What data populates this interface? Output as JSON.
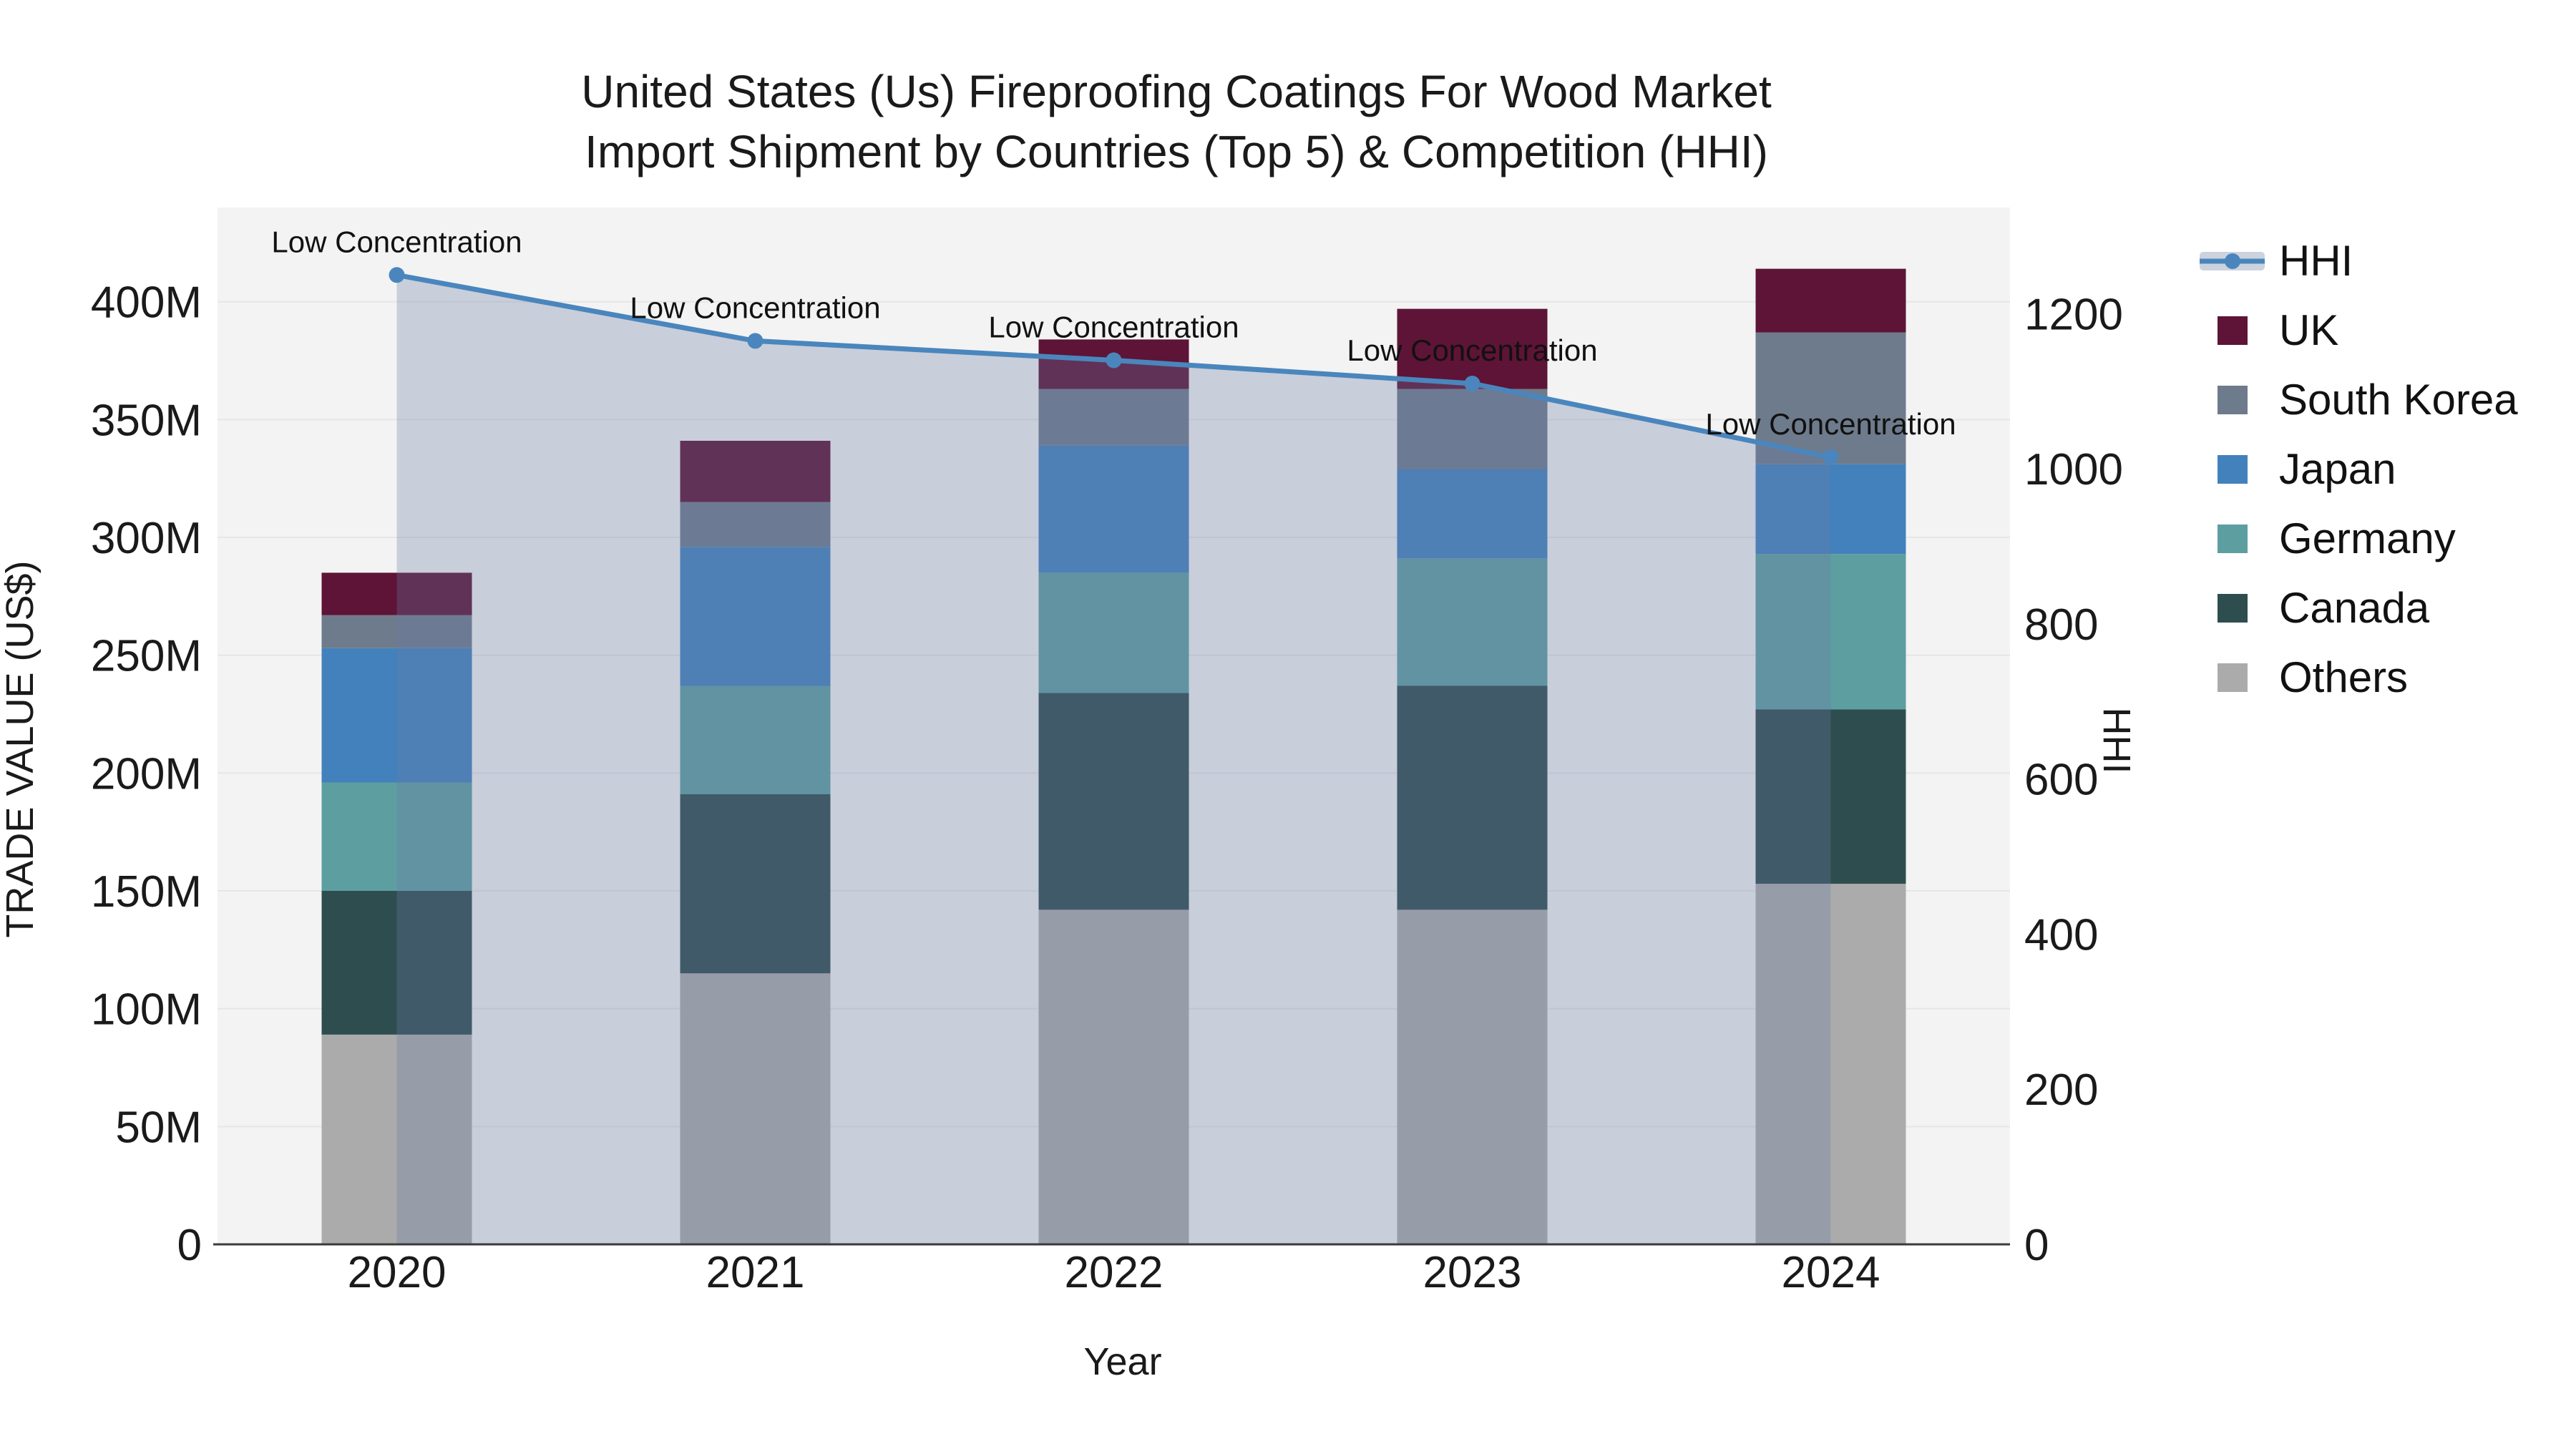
{
  "title": {
    "line1": "United States (Us) Fireproofing Coatings For Wood Market",
    "line2": "Import Shipment by Countries (Top 5) & Competition (HHI)"
  },
  "axes": {
    "left": {
      "title": "TRADE VALUE (US$)",
      "tick_labels": [
        "0",
        "50M",
        "100M",
        "150M",
        "200M",
        "250M",
        "300M",
        "350M",
        "400M"
      ]
    },
    "right": {
      "title": "HHI",
      "tick_labels": [
        "0",
        "200",
        "400",
        "600",
        "800",
        "1000",
        "1200"
      ]
    },
    "x": {
      "title": "Year",
      "tick_labels": [
        "2020",
        "2021",
        "2022",
        "2023",
        "2024"
      ]
    }
  },
  "legend": {
    "items": [
      {
        "label": "HHI",
        "type": "line"
      },
      {
        "label": "UK",
        "type": "box",
        "color": "#5e1436"
      },
      {
        "label": "South Korea",
        "type": "box",
        "color": "#6e7b8c"
      },
      {
        "label": "Japan",
        "type": "box",
        "color": "#4381bc"
      },
      {
        "label": "Germany",
        "type": "box",
        "color": "#5d9ea1"
      },
      {
        "label": "Canada",
        "type": "box",
        "color": "#2e4d4f"
      },
      {
        "label": "Others",
        "type": "box",
        "color": "#ababab"
      }
    ]
  },
  "colors": {
    "plot_bg": "#f3f3f3",
    "grid": "#e6e6e6",
    "axis_line": "#3a3a3a",
    "text": "#1a1a1a",
    "annotation_text": "#111111",
    "hhi_line": "#4a86bd",
    "hhi_area": "rgba(105,122,165,0.30)",
    "hhi_legend_band": "#ccd3de"
  },
  "chart_data": {
    "type": "bar",
    "stacked": true,
    "categories": [
      "2020",
      "2021",
      "2022",
      "2023",
      "2024"
    ],
    "values_unit": "M US$",
    "series": [
      {
        "name": "Others",
        "color": "#ababab",
        "values": [
          89,
          115,
          142,
          142,
          153
        ]
      },
      {
        "name": "Canada",
        "color": "#2e4d4f",
        "values": [
          61,
          76,
          92,
          95,
          74
        ]
      },
      {
        "name": "Germany",
        "color": "#5d9ea1",
        "values": [
          46,
          46,
          51,
          54,
          66
        ]
      },
      {
        "name": "Japan",
        "color": "#4381bc",
        "values": [
          57,
          59,
          54,
          38,
          38
        ]
      },
      {
        "name": "South Korea",
        "color": "#6e7b8c",
        "values": [
          14,
          19,
          24,
          34,
          56
        ]
      },
      {
        "name": "UK",
        "color": "#5e1436",
        "values": [
          18,
          26,
          21,
          34,
          27
        ]
      }
    ],
    "bar_totals": [
      285,
      341,
      384,
      397,
      414
    ],
    "line_series": {
      "name": "HHI",
      "axis": "right",
      "values": [
        1250,
        1165,
        1140,
        1110,
        1015
      ],
      "annotations": [
        "Low Concentration",
        "Low Concentration",
        "Low Concentration",
        "Low Concentration",
        "Low Concentration"
      ]
    },
    "title": "United States (Us) Fireproofing Coatings For Wood Market Import Shipment by Countries (Top 5) & Competition (HHI)",
    "xlabel": "Year",
    "ylabel": "TRADE VALUE (US$)",
    "y2label": "HHI",
    "ylim": [
      0,
      440
    ],
    "y2lim": [
      0,
      1337
    ],
    "yticks": [
      0,
      50,
      100,
      150,
      200,
      250,
      300,
      350,
      400
    ],
    "y2ticks": [
      0,
      200,
      400,
      600,
      800,
      1000,
      1200
    ],
    "grid": "horizontal",
    "legend_position": "right"
  }
}
